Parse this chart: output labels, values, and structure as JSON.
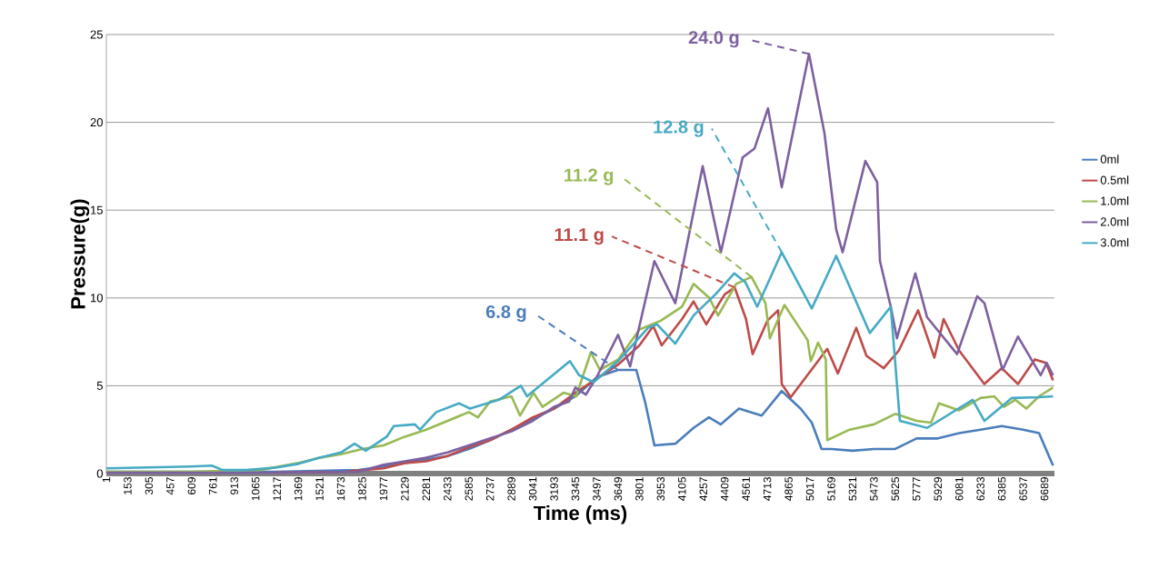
{
  "chart_data": {
    "type": "line",
    "xlabel": "Time (ms)",
    "ylabel": "Pressure(g)",
    "xlim": [
      1,
      6760
    ],
    "ylim": [
      0,
      25
    ],
    "xticks": [
      1,
      153,
      305,
      457,
      609,
      761,
      913,
      1065,
      1217,
      1369,
      1521,
      1673,
      1825,
      1977,
      2129,
      2281,
      2433,
      2585,
      2737,
      2889,
      3041,
      3193,
      3345,
      3497,
      3649,
      3801,
      3953,
      4105,
      4257,
      4409,
      4561,
      4713,
      4865,
      5017,
      5169,
      5321,
      5473,
      5625,
      5777,
      5929,
      6081,
      6233,
      6385,
      6537,
      6689
    ],
    "yticks": [
      0,
      5,
      10,
      15,
      20,
      25
    ],
    "grid": "y",
    "legend": "right",
    "marker": "none",
    "line_style": "solid",
    "series": [
      {
        "name": "0ml",
        "color": "#4a7ebb",
        "x": [
          1,
          600,
          1200,
          1800,
          1977,
          2129,
          2281,
          2433,
          2585,
          2737,
          2889,
          3041,
          3193,
          3345,
          3500,
          3649,
          3779,
          3844,
          3908,
          4057,
          4187,
          4297,
          4380,
          4511,
          4673,
          4816,
          4950,
          5030,
          5100,
          5169,
          5321,
          5473,
          5625,
          5777,
          5929,
          6081,
          6233,
          6385,
          6537,
          6650,
          6750
        ],
        "values": [
          0.1,
          0.1,
          0.1,
          0.2,
          0.4,
          0.6,
          0.8,
          1.0,
          1.4,
          1.9,
          2.5,
          3.1,
          3.7,
          4.4,
          5.5,
          5.9,
          5.9,
          4.0,
          1.6,
          1.7,
          2.6,
          3.2,
          2.8,
          3.7,
          3.3,
          4.7,
          3.7,
          2.9,
          1.4,
          1.4,
          1.3,
          1.4,
          1.4,
          2.0,
          2.0,
          2.3,
          2.5,
          2.7,
          2.5,
          2.3,
          0.45
        ]
      },
      {
        "name": "0.5ml",
        "color": "#be4b48",
        "x": [
          1200,
          1700,
          1977,
          2129,
          2281,
          2433,
          2585,
          2737,
          2889,
          3041,
          3193,
          3345,
          3497,
          3649,
          3801,
          3900,
          3960,
          4105,
          4187,
          4278,
          4409,
          4480,
          4561,
          4608,
          4713,
          4790,
          4816,
          4880,
          5017,
          5140,
          5216,
          5347,
          5420,
          5542,
          5650,
          5788,
          5904,
          5970,
          6081,
          6260,
          6385,
          6500,
          6620,
          6700,
          6750
        ],
        "values": [
          0.05,
          0.1,
          0.3,
          0.6,
          0.7,
          1.0,
          1.5,
          1.9,
          2.5,
          3.2,
          3.7,
          4.6,
          5.4,
          6.2,
          7.3,
          8.4,
          7.3,
          8.8,
          9.8,
          8.5,
          10.2,
          10.6,
          8.8,
          6.8,
          8.7,
          9.3,
          5.1,
          4.35,
          5.8,
          7.1,
          5.7,
          8.3,
          6.7,
          6.0,
          7.0,
          9.3,
          6.6,
          8.8,
          7.0,
          5.1,
          6.0,
          5.1,
          6.5,
          6.3,
          5.3
        ]
      },
      {
        "name": "1.0ml",
        "color": "#98b954",
        "x": [
          1,
          600,
          1100,
          1369,
          1521,
          1673,
          1825,
          1977,
          2129,
          2281,
          2433,
          2585,
          2650,
          2737,
          2889,
          2950,
          3046,
          3110,
          3260,
          3350,
          3455,
          3520,
          3650,
          3801,
          3953,
          4105,
          4187,
          4300,
          4362,
          4491,
          4600,
          4700,
          4731,
          4835,
          5000,
          5023,
          5075,
          5130,
          5140,
          5300,
          5473,
          5625,
          5777,
          5880,
          5937,
          6081,
          6233,
          6330,
          6400,
          6480,
          6560,
          6650,
          6750
        ],
        "values": [
          0.1,
          0.1,
          0.2,
          0.6,
          0.9,
          1.1,
          1.4,
          1.6,
          2.1,
          2.5,
          3.0,
          3.5,
          3.2,
          4.1,
          4.4,
          3.3,
          4.6,
          3.8,
          4.6,
          4.4,
          6.9,
          5.9,
          6.5,
          8.2,
          8.7,
          9.5,
          10.8,
          10.0,
          9.0,
          10.8,
          11.2,
          9.7,
          7.7,
          9.6,
          7.6,
          6.4,
          7.45,
          6.5,
          1.9,
          2.5,
          2.8,
          3.4,
          3.0,
          2.9,
          4.0,
          3.6,
          4.3,
          4.4,
          3.8,
          4.2,
          3.7,
          4.4,
          4.9
        ]
      },
      {
        "name": "2.0ml",
        "color": "#7d60a0",
        "x": [
          1,
          600,
          1200,
          1800,
          1977,
          2129,
          2281,
          2433,
          2585,
          2737,
          2889,
          3041,
          3193,
          3300,
          3345,
          3420,
          3497,
          3649,
          3735,
          3908,
          4057,
          4252,
          4382,
          4537,
          4621,
          4718,
          4816,
          5010,
          5120,
          5204,
          5250,
          5412,
          5496,
          5516,
          5593,
          5637,
          5768,
          5852,
          6066,
          6209,
          6261,
          6390,
          6500,
          6662,
          6705,
          6750
        ],
        "values": [
          0.05,
          0.05,
          0.05,
          0.1,
          0.5,
          0.7,
          0.9,
          1.2,
          1.6,
          2.0,
          2.4,
          3.0,
          3.8,
          4.1,
          4.9,
          4.5,
          5.5,
          7.9,
          6.1,
          12.1,
          9.7,
          17.5,
          12.6,
          18.0,
          18.5,
          20.8,
          16.3,
          23.9,
          19.4,
          13.9,
          12.6,
          17.8,
          16.6,
          12.1,
          9.5,
          7.7,
          11.4,
          8.9,
          6.8,
          10.1,
          9.7,
          5.9,
          7.8,
          5.6,
          6.3,
          5.6
        ]
      },
      {
        "name": "3.0ml",
        "color": "#46aac5",
        "x": [
          1,
          300,
          600,
          753,
          830,
          1000,
          1217,
          1369,
          1521,
          1673,
          1770,
          1850,
          2000,
          2050,
          2200,
          2237,
          2353,
          2515,
          2593,
          2800,
          2956,
          3000,
          3306,
          3371,
          3475,
          3649,
          3863,
          3927,
          4057,
          4187,
          4343,
          4478,
          4556,
          4641,
          4816,
          5030,
          5204,
          5444,
          5593,
          5658,
          5852,
          6177,
          6261,
          6455,
          6650,
          6750
        ],
        "values": [
          0.3,
          0.35,
          0.4,
          0.45,
          0.2,
          0.2,
          0.35,
          0.55,
          0.9,
          1.2,
          1.7,
          1.3,
          2.1,
          2.7,
          2.8,
          2.5,
          3.5,
          4.0,
          3.7,
          4.2,
          5.0,
          4.4,
          6.4,
          5.6,
          5.2,
          6.4,
          8.3,
          8.5,
          7.4,
          9.0,
          10.2,
          11.4,
          10.9,
          9.5,
          12.6,
          9.4,
          12.4,
          8.0,
          9.5,
          3.0,
          2.6,
          4.2,
          3.0,
          4.3,
          4.35,
          4.4
        ]
      }
    ],
    "annotations": [
      {
        "text": "6.8 g",
        "x": 3649,
        "y": 5.9
      },
      {
        "text": "11.1 g",
        "x": 4480,
        "y": 10.6
      },
      {
        "text": "11.2 g",
        "x": 4600,
        "y": 11.2
      },
      {
        "text": "24.0 g",
        "x": 5010,
        "y": 23.9
      },
      {
        "text": "12.8 g",
        "x": 4816,
        "y": 12.6
      }
    ]
  }
}
